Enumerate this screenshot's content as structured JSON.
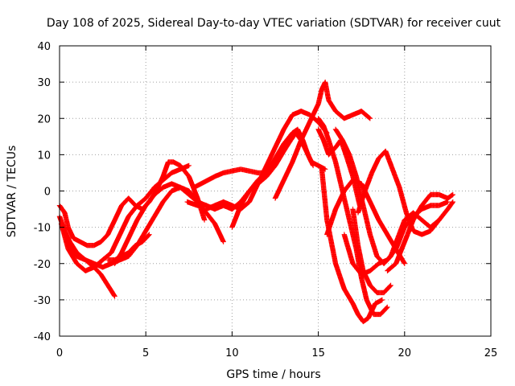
{
  "chart_data": {
    "type": "scatter",
    "title": "Day 108 of 2025, Sidereal Day-to-day VTEC variation (SDTVAR) for receiver cuut",
    "xlabel": "GPS time / hours",
    "ylabel": "SDTVAR / TECUs",
    "xlim": [
      0,
      25
    ],
    "ylim": [
      -40,
      40
    ],
    "xticks": [
      0,
      5,
      10,
      15,
      20,
      25
    ],
    "yticks": [
      -40,
      -30,
      -20,
      -10,
      0,
      10,
      20,
      30,
      40
    ],
    "grid": true,
    "marker": "plus",
    "color": "#ff0000",
    "series": [
      {
        "x": [
          0.0,
          0.3,
          0.6,
          1.0,
          1.5,
          2.0,
          2.4,
          2.8,
          3.2
        ],
        "y": [
          -7,
          -11,
          -14,
          -17,
          -19,
          -21,
          -23,
          -26,
          -29
        ]
      },
      {
        "x": [
          0.0,
          0.3,
          0.5,
          0.8,
          1.2,
          1.6,
          2.0,
          2.4,
          2.8,
          3.2,
          3.6,
          4.0,
          4.4,
          4.8,
          5.2,
          5.6,
          6.0,
          6.3,
          6.6,
          7.0,
          7.5,
          8.0,
          8.4
        ],
        "y": [
          -4,
          -6,
          -10,
          -13,
          -14,
          -15,
          -15,
          -14,
          -12,
          -8,
          -4,
          -2,
          -4,
          -5,
          -3,
          0,
          4,
          8,
          8,
          7,
          4,
          -2,
          -8
        ]
      },
      {
        "x": [
          0.1,
          0.5,
          1.0,
          1.5,
          2.0,
          2.5,
          3.0,
          3.5,
          4.0,
          4.5,
          5.0,
          5.5,
          6.0,
          6.5,
          7.0,
          7.5
        ],
        "y": [
          -9,
          -16,
          -20,
          -22,
          -21,
          -19,
          -17,
          -12,
          -7,
          -4,
          -2,
          1,
          3,
          5,
          6,
          7
        ]
      },
      {
        "x": [
          0.2,
          0.6,
          1.0,
          1.5,
          2.0,
          2.5,
          3.0,
          3.5,
          4.0,
          4.5,
          5.0,
          5.5,
          6.0,
          6.5,
          7.0,
          7.5,
          8.0,
          8.5,
          9.0,
          9.5
        ],
        "y": [
          -10,
          -15,
          -18,
          -19,
          -20,
          -21,
          -20,
          -19,
          -18,
          -15,
          -11,
          -7,
          -3,
          0,
          1,
          0,
          -3,
          -6,
          -9,
          -14
        ]
      },
      {
        "x": [
          2.8,
          3.2,
          3.6,
          4.0,
          4.4,
          4.8,
          5.2
        ],
        "y": [
          -19,
          -19,
          -18,
          -17,
          -15,
          -14,
          -12
        ]
      },
      {
        "x": [
          3.2,
          3.6,
          4.0,
          4.5,
          5.0,
          5.5,
          6.0,
          6.5,
          7.0,
          7.5,
          8.0,
          8.5,
          9.0
        ],
        "y": [
          -20,
          -17,
          -13,
          -8,
          -4,
          -1,
          1,
          2,
          1,
          -1,
          -3,
          -4,
          -5
        ]
      },
      {
        "x": [
          7.4,
          8.0,
          8.5,
          9.0,
          9.5,
          10.0,
          10.5,
          11.0,
          11.5,
          12.0
        ],
        "y": [
          -3,
          -4,
          -4,
          -5,
          -4,
          -5,
          -3,
          0,
          3,
          5
        ]
      },
      {
        "x": [
          7.8,
          8.2,
          8.6,
          9.0,
          9.5,
          10.0,
          10.5,
          11.0,
          11.5,
          12.0,
          12.5,
          13.0,
          13.5,
          13.8,
          14.1,
          14.4,
          14.7
        ],
        "y": [
          1,
          2,
          3,
          4,
          5,
          5.5,
          6,
          5.5,
          5,
          5,
          9,
          13,
          16,
          17,
          14,
          10,
          7
        ]
      },
      {
        "x": [
          8.5,
          9.0,
          9.5,
          10.0,
          10.5,
          11.0,
          11.5,
          12.0,
          12.5,
          13.0,
          13.5,
          14.0,
          14.5,
          15.0,
          15.5
        ],
        "y": [
          -5,
          -4,
          -3,
          -4,
          -5,
          -3,
          2,
          7,
          12,
          17,
          21,
          22,
          21,
          19,
          16
        ]
      },
      {
        "x": [
          10.0,
          10.5,
          11.0,
          11.5,
          12.0,
          12.5,
          13.0,
          13.4,
          13.7,
          14.0,
          14.3,
          14.6,
          15.0,
          15.4
        ],
        "y": [
          -10,
          -4,
          0,
          2,
          4,
          7,
          11,
          14,
          16,
          14,
          11,
          8,
          7,
          6
        ]
      },
      {
        "x": [
          12.5,
          13.0,
          13.5,
          14.0,
          14.5,
          15.0,
          15.2,
          15.4,
          15.6,
          16.0,
          16.5,
          17.0,
          17.5,
          18.0
        ],
        "y": [
          -2,
          3,
          8,
          14,
          19,
          24,
          28,
          30,
          25,
          22,
          20,
          21,
          22,
          20
        ]
      },
      {
        "x": [
          15.0,
          15.3,
          15.6,
          16.0,
          16.4,
          16.8,
          17.2,
          17.5,
          17.8,
          18.2,
          18.6,
          19.0
        ],
        "y": [
          20,
          18,
          14,
          8,
          0,
          -8,
          -16,
          -24,
          -30,
          -34,
          -34,
          -32
        ]
      },
      {
        "x": [
          15.2,
          15.5,
          16.0,
          16.5,
          17.0,
          17.3,
          17.6,
          17.9,
          18.3,
          18.7
        ],
        "y": [
          6,
          -8,
          -20,
          -27,
          -31,
          -34,
          -36,
          -35,
          -31,
          -30
        ]
      },
      {
        "x": [
          15.5,
          16.0,
          16.5,
          17.0,
          17.5,
          18.0,
          18.5,
          19.0,
          19.5,
          20.0
        ],
        "y": [
          -12,
          -5,
          0,
          3,
          2,
          -3,
          -8,
          -12,
          -16,
          -20
        ]
      },
      {
        "x": [
          16.0,
          16.4,
          16.8,
          17.2,
          17.6,
          18.0,
          18.4,
          18.8,
          19.2,
          19.6,
          20.0,
          20.5,
          21.0,
          21.5,
          22.0
        ],
        "y": [
          17,
          14,
          10,
          4,
          -4,
          -12,
          -18,
          -20,
          -18,
          -13,
          -8,
          -6,
          -8,
          -10,
          -8
        ]
      },
      {
        "x": [
          16.5,
          17.0,
          17.5,
          18.0,
          18.5,
          19.0,
          19.5,
          20.0,
          20.5,
          21.0,
          21.5,
          22.0,
          22.5
        ],
        "y": [
          -12,
          -20,
          -23,
          -22,
          -20,
          -19,
          -16,
          -10,
          -7,
          -5,
          -4,
          -4,
          -3
        ]
      },
      {
        "x": [
          17.3,
          17.7,
          18.1,
          18.5,
          18.9,
          19.3,
          19.7,
          20.1,
          20.5,
          21.0,
          21.5,
          22.0,
          22.5,
          22.8
        ],
        "y": [
          -6,
          0,
          5,
          9,
          11,
          6,
          1,
          -6,
          -11,
          -12,
          -11,
          -8,
          -5,
          -3
        ]
      },
      {
        "x": [
          19.0,
          19.5,
          20.0,
          20.5,
          21.0,
          21.5,
          22.0,
          22.5,
          22.8
        ],
        "y": [
          -22,
          -20,
          -14,
          -8,
          -4,
          -1,
          -1,
          -2,
          -1
        ]
      },
      {
        "x": [
          17.0,
          17.3,
          17.6,
          18.0,
          18.4,
          18.8,
          19.2
        ],
        "y": [
          -5,
          -15,
          -22,
          -26,
          -28,
          -28,
          -26
        ]
      },
      {
        "x": [
          15.0,
          15.3,
          15.6,
          16.0,
          16.3,
          16.6,
          17.0,
          17.4
        ],
        "y": [
          17,
          14,
          10,
          12,
          14,
          10,
          4,
          -4
        ]
      }
    ]
  }
}
